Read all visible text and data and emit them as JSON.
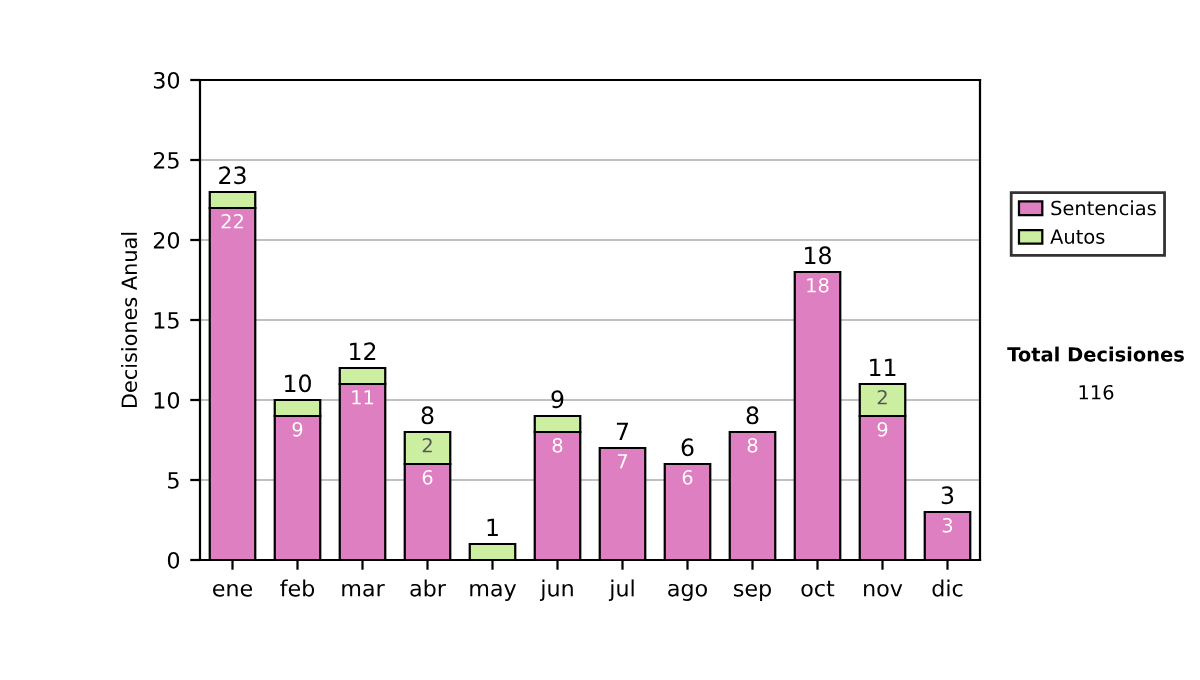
{
  "chart_data": {
    "type": "bar",
    "stacked": true,
    "ylabel": "Decisiones Anual",
    "categories": [
      "ene",
      "feb",
      "mar",
      "abr",
      "may",
      "jun",
      "jul",
      "ago",
      "sep",
      "oct",
      "nov",
      "dic"
    ],
    "series": [
      {
        "name": "Sentencias",
        "color": "#dd7fc0",
        "values": [
          22,
          9,
          11,
          6,
          0,
          8,
          7,
          6,
          8,
          18,
          9,
          3
        ],
        "value_labels": [
          "22",
          "9",
          "11",
          "6",
          null,
          "8",
          "7",
          "6",
          "8",
          "18",
          "9",
          "3"
        ]
      },
      {
        "name": "Autos",
        "color": "#cceea0",
        "values": [
          1,
          1,
          1,
          2,
          1,
          1,
          0,
          0,
          0,
          0,
          2,
          0
        ],
        "value_labels": [
          null,
          null,
          null,
          "2",
          null,
          null,
          null,
          null,
          null,
          null,
          "2",
          null
        ]
      }
    ],
    "totals": [
      "23",
      "10",
      "12",
      "8",
      "1",
      "9",
      "7",
      "6",
      "8",
      "18",
      "11",
      "3"
    ],
    "ylim": [
      0,
      30
    ],
    "yticks": [
      0,
      5,
      10,
      15,
      20,
      25,
      30
    ],
    "grid": "y",
    "legend": "right",
    "annotations": [
      "Total Decisiones",
      "116"
    ]
  }
}
